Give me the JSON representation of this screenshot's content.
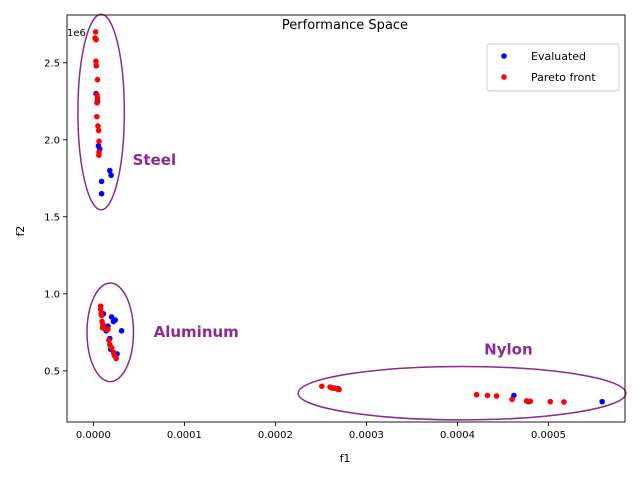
{
  "chart_data": {
    "type": "scatter",
    "title": "Performance Space",
    "xlabel": "f1",
    "ylabel": "f2",
    "y_offset_label": "1e6",
    "xlim": [
      -2.9e-05,
      0.0005841
    ],
    "ylim": [
      0.168,
      2.81
    ],
    "x_ticks": [
      0,
      0.0001,
      0.0002,
      0.0003,
      0.0004,
      0.0005
    ],
    "x_tick_labels": [
      "0.0000",
      "0.0001",
      "0.0002",
      "0.0003",
      "0.0004",
      "0.0005"
    ],
    "y_ticks": [
      0.5,
      1.0,
      1.5,
      2.0,
      2.5
    ],
    "y_tick_labels": [
      "0.5",
      "1.0",
      "1.5",
      "2.0",
      "2.5"
    ],
    "grid": false,
    "legend_position": "top-right",
    "series": [
      {
        "name": "Evaluated",
        "color": "#0000ff",
        "points": [
          [
            2.9e-06,
            2.3
          ],
          [
            4.5e-06,
            2.25
          ],
          [
            5.5e-06,
            1.96
          ],
          [
            7e-06,
            1.94
          ],
          [
            9e-06,
            1.73
          ],
          [
            9e-06,
            1.65
          ],
          [
            1.8e-05,
            1.8
          ],
          [
            1.95e-05,
            1.77
          ],
          [
            1.1e-05,
            0.87
          ],
          [
            1.6e-05,
            0.79
          ],
          [
            2e-05,
            0.85
          ],
          [
            2.2e-05,
            0.82
          ],
          [
            2.4e-05,
            0.83
          ],
          [
            3.1e-05,
            0.76
          ],
          [
            1.8e-05,
            0.71
          ],
          [
            2.6e-05,
            0.61
          ],
          [
            1.4e-05,
            0.76
          ],
          [
            1.9e-05,
            0.64
          ],
          [
            0.000269,
            0.385
          ],
          [
            0.000263,
            0.388
          ],
          [
            0.000462,
            0.34
          ],
          [
            0.000478,
            0.3
          ],
          [
            0.000559,
            0.3
          ]
        ]
      },
      {
        "name": "Pareto front",
        "color": "#ff0000",
        "points": [
          [
            2.5e-06,
            2.7
          ],
          [
            1.8e-06,
            2.66
          ],
          [
            3e-06,
            2.65
          ],
          [
            2.8e-06,
            2.51
          ],
          [
            3.2e-06,
            2.48
          ],
          [
            4.5e-06,
            2.39
          ],
          [
            4e-06,
            2.29
          ],
          [
            4.5e-06,
            2.27
          ],
          [
            4e-06,
            2.24
          ],
          [
            3.8e-06,
            2.15
          ],
          [
            5e-06,
            2.09
          ],
          [
            5.8e-06,
            2.06
          ],
          [
            6.2e-06,
            1.99
          ],
          [
            6.2e-06,
            1.92
          ],
          [
            6e-06,
            1.9
          ],
          [
            8e-06,
            0.92
          ],
          [
            8e-06,
            0.9
          ],
          [
            8.5e-06,
            0.87
          ],
          [
            9e-06,
            0.86
          ],
          [
            9.5e-06,
            0.82
          ],
          [
            1.05e-05,
            0.8
          ],
          [
            1e-05,
            0.78
          ],
          [
            1.1e-05,
            0.78
          ],
          [
            1.3e-05,
            0.77
          ],
          [
            1.4e-05,
            0.77
          ],
          [
            1.6e-05,
            0.77
          ],
          [
            1.7e-05,
            0.7
          ],
          [
            1.8e-05,
            0.67
          ],
          [
            2e-05,
            0.65
          ],
          [
            2.2e-05,
            0.62
          ],
          [
            2.3e-05,
            0.6
          ],
          [
            2.5e-05,
            0.58
          ],
          [
            0.000251,
            0.4
          ],
          [
            0.00026,
            0.395
          ],
          [
            0.000262,
            0.39
          ],
          [
            0.000265,
            0.388
          ],
          [
            0.000268,
            0.382
          ],
          [
            0.00027,
            0.378
          ],
          [
            0.000421,
            0.345
          ],
          [
            0.000433,
            0.34
          ],
          [
            0.000443,
            0.337
          ],
          [
            0.00046,
            0.315
          ],
          [
            0.000476,
            0.305
          ],
          [
            0.00048,
            0.302
          ],
          [
            0.000502,
            0.3
          ],
          [
            0.000517,
            0.298
          ]
        ]
      }
    ],
    "annotations": [
      {
        "text": "Steel",
        "x": 6.7e-05,
        "y": 1.835,
        "color": "#8b2a91"
      },
      {
        "text": "Aluminum",
        "x": 0.000113,
        "y": 0.72,
        "color": "#8b2a91"
      },
      {
        "text": "Nylon",
        "x": 0.000456,
        "y": 0.605,
        "color": "#8b2a91"
      }
    ],
    "ellipses": [
      {
        "cx": 8.5e-06,
        "cy": 2.18,
        "rx": 2.55e-05,
        "ry": 0.635,
        "color": "#8b2a91"
      },
      {
        "cx": 1.85e-05,
        "cy": 0.75,
        "rx": 2.55e-05,
        "ry": 0.32,
        "color": "#8b2a91"
      },
      {
        "cx": 0.000405,
        "cy": 0.355,
        "rx": 0.00018,
        "ry": 0.173,
        "color": "#8b2a91"
      }
    ]
  }
}
